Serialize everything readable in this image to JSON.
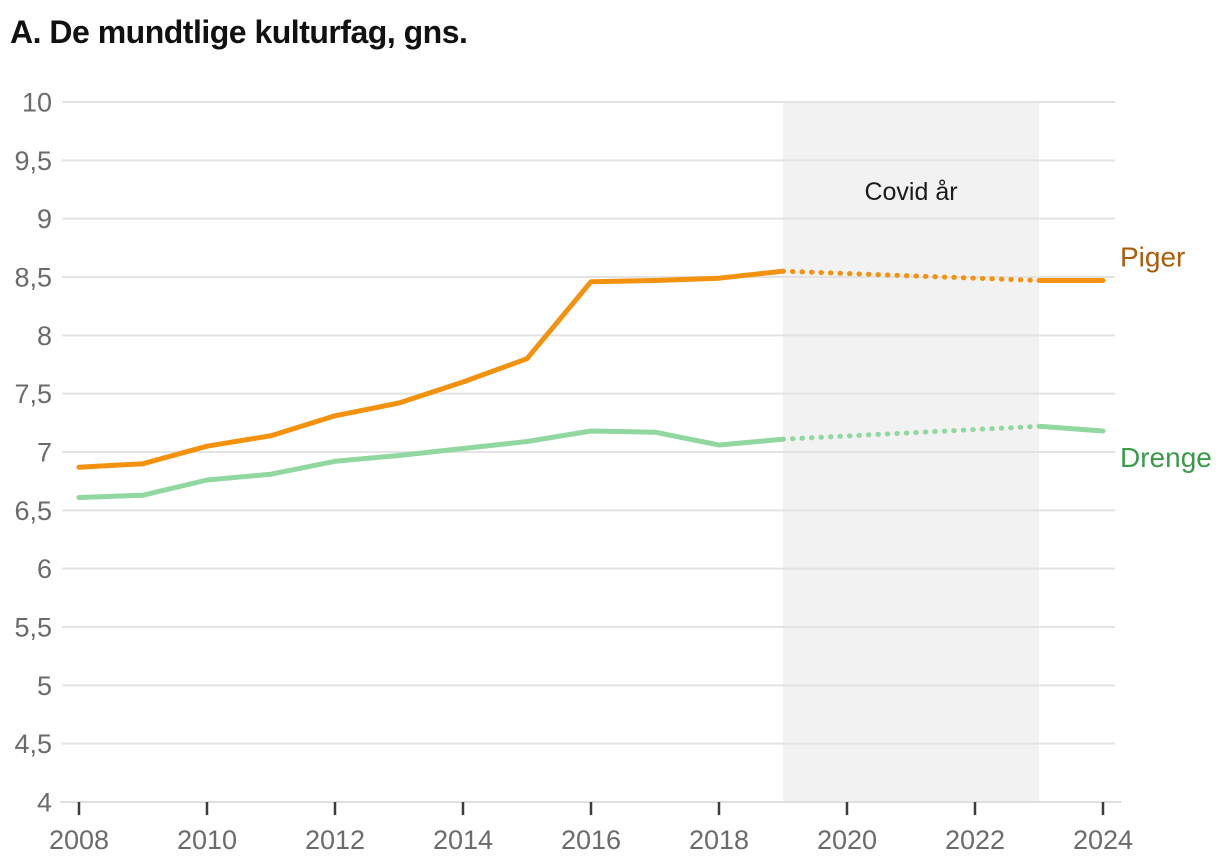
{
  "title": "A. De mundtlige kulturfag, gns.",
  "chart_data": {
    "type": "line",
    "title": "A. De mundtlige kulturfag, gns.",
    "xlabel": "",
    "ylabel": "",
    "xlim": [
      2008,
      2024
    ],
    "ylim": [
      4,
      10
    ],
    "grid": "horizontal",
    "xticks": [
      2008,
      2010,
      2012,
      2014,
      2016,
      2018,
      2020,
      2022,
      2024
    ],
    "xticklabels": [
      "2008",
      "2010",
      "2012",
      "2014",
      "2016",
      "2018",
      "2020",
      "2022",
      "2024"
    ],
    "yticks": [
      4,
      4.5,
      5,
      5.5,
      6,
      6.5,
      7,
      7.5,
      8,
      8.5,
      9,
      9.5,
      10
    ],
    "yticklabels": [
      "4",
      "4,5",
      "5",
      "5,5",
      "6",
      "6,5",
      "7",
      "7,5",
      "8",
      "8,5",
      "9",
      "9,5",
      "10"
    ],
    "covid_band": {
      "label": "Covid år",
      "x_start": 2019,
      "x_end": 2023
    },
    "series": [
      {
        "name": "Piger",
        "color": "#f2920e",
        "label_color": "#ad5c0c",
        "label_dy": -14,
        "segments": [
          {
            "style": "solid",
            "x": [
              2008,
              2009,
              2010,
              2011,
              2012,
              2013,
              2014,
              2015,
              2016,
              2017,
              2018,
              2019
            ],
            "values": [
              6.87,
              6.9,
              7.05,
              7.14,
              7.31,
              7.42,
              7.6,
              7.8,
              8.46,
              8.47,
              8.49,
              8.55
            ]
          },
          {
            "style": "dotted",
            "x": [
              2019,
              2023
            ],
            "values": [
              8.55,
              8.47
            ]
          },
          {
            "style": "solid",
            "x": [
              2023,
              2024
            ],
            "values": [
              8.47,
              8.47
            ]
          }
        ]
      },
      {
        "name": "Drenge",
        "color": "#90d7a0",
        "label_color": "#3a9b49",
        "label_dy": 36,
        "segments": [
          {
            "style": "solid",
            "x": [
              2008,
              2009,
              2010,
              2011,
              2012,
              2013,
              2014,
              2015,
              2016,
              2017,
              2018,
              2019
            ],
            "values": [
              6.61,
              6.63,
              6.76,
              6.81,
              6.92,
              6.97,
              7.03,
              7.09,
              7.18,
              7.17,
              7.06,
              7.11
            ]
          },
          {
            "style": "dotted",
            "x": [
              2019,
              2023
            ],
            "values": [
              7.11,
              7.22
            ]
          },
          {
            "style": "solid",
            "x": [
              2023,
              2024
            ],
            "values": [
              7.22,
              7.18
            ]
          }
        ]
      }
    ],
    "colors": {
      "band": "#f2f2f2",
      "grid": "#e3e3e3",
      "axis_line": "#e0e0e0",
      "tick": "#3d3d3d",
      "axis_text": "#6b6b6b",
      "title_text": "#111111",
      "covid_text": "#1a1a1a",
      "background": "#ffffff"
    }
  }
}
